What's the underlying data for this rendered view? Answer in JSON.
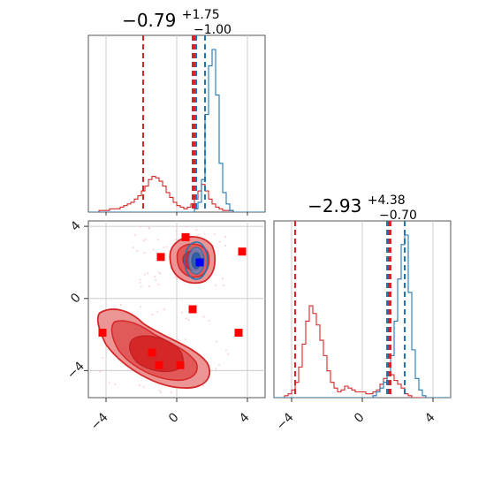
{
  "chart_data": {
    "type": "corner",
    "title_var1": {
      "main": "−0.79",
      "sup": "+1.75",
      "sub": "−1.00"
    },
    "title_var2": {
      "main": "−2.93",
      "sup": "+4.38",
      "sub": "−0.70"
    },
    "ticks_x": [
      "−4",
      "0",
      "4"
    ],
    "ticks_x_vals": [
      -4,
      0,
      4
    ],
    "ticks_y": [
      "4",
      "0",
      "−4"
    ],
    "ticks_y_vals": [
      4,
      0,
      -4
    ],
    "xlim": [
      -5,
      5
    ],
    "ylim": [
      -5.5,
      4.3
    ],
    "grid": true,
    "colors": {
      "red": "#d62728",
      "blue": "#1f77b4"
    },
    "red_markers": [
      {
        "x": 0.5,
        "y": 3.4
      },
      {
        "x": -0.9,
        "y": 2.3
      },
      {
        "x": 3.7,
        "y": 2.6
      },
      {
        "x": 0.9,
        "y": -0.6
      },
      {
        "x": -4.2,
        "y": -1.9
      },
      {
        "x": 3.5,
        "y": -1.9
      },
      {
        "x": -1.4,
        "y": -3.0
      },
      {
        "x": -1.0,
        "y": -3.7
      },
      {
        "x": 0.2,
        "y": -3.7
      }
    ],
    "blue_marker": {
      "x": 1.3,
      "y": 2.0
    },
    "lines_var1_red": [
      -1.9,
      0.9,
      1.0
    ],
    "lines_var1_blue": [
      1.1,
      1.6
    ],
    "lines_var2_red": [
      -3.8,
      1.5,
      1.6
    ],
    "lines_var2_blue": [
      1.4,
      2.4
    ],
    "hist1_red": {
      "start": -5,
      "step": 0.2,
      "values": [
        0,
        0,
        0,
        0.01,
        0.01,
        0.01,
        0.02,
        0.02,
        0.02,
        0.03,
        0.04,
        0.05,
        0.06,
        0.08,
        0.1,
        0.13,
        0.16,
        0.2,
        0.22,
        0.21,
        0.19,
        0.16,
        0.12,
        0.09,
        0.06,
        0.04,
        0.03,
        0.02,
        0.03,
        0.05,
        0.08,
        0.13,
        0.17,
        0.13,
        0.08,
        0.05,
        0.03,
        0.02,
        0.01,
        0.01,
        0.01,
        0,
        0,
        0,
        0,
        0,
        0,
        0,
        0,
        0
      ]
    },
    "hist1_blue": {
      "start": -5,
      "step": 0.2,
      "values": [
        0,
        0,
        0,
        0,
        0,
        0,
        0,
        0,
        0,
        0,
        0,
        0,
        0,
        0,
        0,
        0,
        0,
        0,
        0,
        0,
        0,
        0,
        0,
        0,
        0,
        0,
        0,
        0,
        0,
        0,
        0.02,
        0.06,
        0.2,
        0.6,
        0.9,
        1.0,
        0.72,
        0.3,
        0.12,
        0.05,
        0.01,
        0,
        0,
        0,
        0,
        0,
        0,
        0,
        0,
        0
      ]
    },
    "hist2_red": {
      "start": -5,
      "step": 0.2,
      "values": [
        0,
        0,
        0,
        0.01,
        0.02,
        0.04,
        0.08,
        0.16,
        0.28,
        0.4,
        0.48,
        0.44,
        0.38,
        0.3,
        0.22,
        0.14,
        0.08,
        0.05,
        0.03,
        0.04,
        0.06,
        0.05,
        0.04,
        0.03,
        0.03,
        0.03,
        0.02,
        0.02,
        0.03,
        0.04,
        0.07,
        0.1,
        0.13,
        0.12,
        0.09,
        0.07,
        0.05,
        0.02,
        0.01,
        0,
        0,
        0,
        0,
        0,
        0,
        0,
        0,
        0,
        0,
        0
      ]
    },
    "hist2_blue": {
      "start": -5,
      "step": 0.2,
      "values": [
        0,
        0,
        0,
        0,
        0,
        0,
        0,
        0,
        0,
        0,
        0,
        0,
        0,
        0,
        0,
        0,
        0,
        0,
        0,
        0,
        0,
        0,
        0,
        0,
        0,
        0,
        0,
        0,
        0.01,
        0.03,
        0.05,
        0.08,
        0.12,
        0.22,
        0.4,
        0.62,
        0.8,
        0.85,
        0.55,
        0.25,
        0.1,
        0.04,
        0.01,
        0,
        0,
        0,
        0,
        0,
        0,
        0
      ]
    }
  }
}
